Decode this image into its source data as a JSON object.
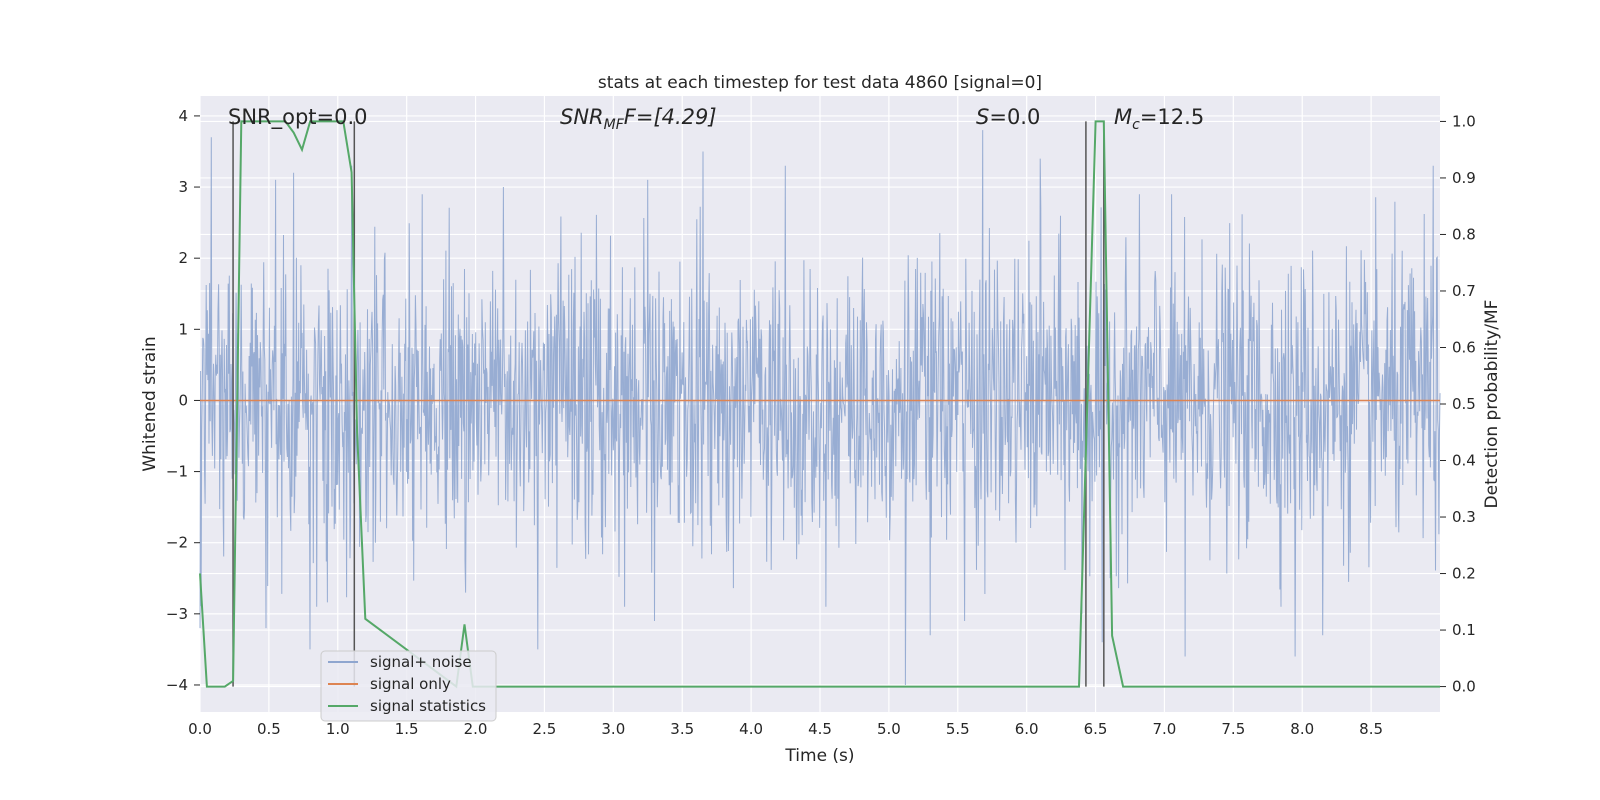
{
  "chart_data": {
    "type": "line",
    "title": "stats at each timestep for test data 4860 [signal=0]",
    "xlabel": "Time (s)",
    "ylabel": "Whitened strain",
    "y2label": "Detection probability/MF",
    "xlim": [
      0.0,
      9.0
    ],
    "ylim": [
      -4.38,
      4.28
    ],
    "y2lim": [
      -0.045,
      1.045
    ],
    "xticks": [
      0.0,
      0.5,
      1.0,
      1.5,
      2.0,
      2.5,
      3.0,
      3.5,
      4.0,
      4.5,
      5.0,
      5.5,
      6.0,
      6.5,
      7.0,
      7.5,
      8.0,
      8.5
    ],
    "yticks": [
      -4,
      -3,
      -2,
      -1,
      0,
      1,
      2,
      3,
      4
    ],
    "y2ticks": [
      0.0,
      0.1,
      0.2,
      0.3,
      0.4,
      0.5,
      0.6,
      0.7,
      0.8,
      0.9,
      1.0
    ],
    "grid": true,
    "legend_placement": "lower-left",
    "annotations": {
      "snr_opt": "SNR_opt=0.0",
      "snr_mf_prefix": "SNR",
      "snr_mf_sub": "MF",
      "snr_mf_suffix": "F=[4.29]",
      "s_prefix": "S",
      "s_suffix": "=0.0",
      "mc_prefix": "M",
      "mc_sub": "c",
      "mc_suffix": "=12.5"
    },
    "series": [
      {
        "name": "signal+ noise",
        "color": "#8fa6cf",
        "axis": "left",
        "approx_sigma": 1.0,
        "peaks": [
          [
            0.08,
            3.7
          ],
          [
            0.55,
            3.1
          ],
          [
            0.68,
            3.2
          ],
          [
            1.1,
            3.3
          ],
          [
            2.2,
            3.0
          ],
          [
            3.25,
            3.1
          ],
          [
            3.65,
            3.5
          ],
          [
            4.25,
            3.3
          ],
          [
            5.55,
            3.9
          ],
          [
            5.68,
            3.8
          ],
          [
            6.1,
            3.4
          ],
          [
            8.95,
            3.3
          ]
        ],
        "troughs": [
          [
            0.0,
            -3.2
          ],
          [
            0.48,
            -3.2
          ],
          [
            0.8,
            -3.5
          ],
          [
            2.45,
            -3.5
          ],
          [
            3.3,
            -3.1
          ],
          [
            5.12,
            -4.0
          ],
          [
            5.3,
            -3.3
          ],
          [
            5.55,
            -3.1
          ],
          [
            6.4,
            -3.0
          ],
          [
            6.55,
            -3.4
          ],
          [
            7.15,
            -3.6
          ],
          [
            7.95,
            -3.6
          ],
          [
            8.15,
            -3.3
          ]
        ]
      },
      {
        "name": "signal only",
        "color": "#dd8452",
        "axis": "left",
        "x": [
          0.0,
          9.0
        ],
        "y": [
          0.0,
          0.0
        ]
      },
      {
        "name": "signal statistics",
        "color": "#55a868",
        "axis": "right",
        "x": [
          0.0,
          0.05,
          0.18,
          0.24,
          0.3,
          0.62,
          0.68,
          0.74,
          0.8,
          1.04,
          1.1,
          1.14,
          1.2,
          1.86,
          1.92,
          1.98,
          6.38,
          6.5,
          6.56,
          6.62,
          6.7,
          9.0
        ],
        "y": [
          0.2,
          0.0,
          0.0,
          0.01,
          1.0,
          1.0,
          0.98,
          0.95,
          1.0,
          1.0,
          0.91,
          0.45,
          0.12,
          0.0,
          0.11,
          0.0,
          0.0,
          1.0,
          1.0,
          0.09,
          0.0,
          0.0
        ]
      }
    ],
    "vertical_markers": [
      {
        "x": 0.24,
        "y2_from": 0.0,
        "y2_to": 1.0,
        "color": "#555555"
      },
      {
        "x": 1.12,
        "y2_from": 0.0,
        "y2_to": 1.0,
        "color": "#555555"
      },
      {
        "x": 6.43,
        "y2_from": 0.0,
        "y2_to": 1.0,
        "color": "#555555"
      },
      {
        "x": 6.56,
        "y2_from": 0.0,
        "y2_to": 1.0,
        "color": "#555555"
      }
    ]
  }
}
